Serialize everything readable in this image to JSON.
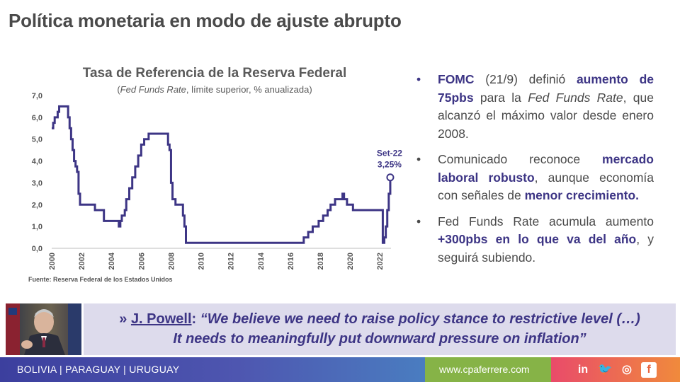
{
  "slide": {
    "title": "Política monetaria en modo de ajuste abrupto"
  },
  "chart_data": {
    "type": "line",
    "title": "Tasa de Referencia de la Reserva Federal",
    "subtitle_italic": "Fed Funds Rate",
    "subtitle_rest": ", límite superior, % anualizada)",
    "subtitle_open": "(",
    "source": "Fuente: Reserva Federal de los Estados Unidos",
    "ylim": [
      0,
      7
    ],
    "yticks": [
      "0,0",
      "1,0",
      "2,0",
      "3,0",
      "4,0",
      "5,0",
      "6,0",
      "7,0"
    ],
    "xlim": [
      2000,
      2022.75
    ],
    "xticks": [
      "2000",
      "2002",
      "2004",
      "2006",
      "2008",
      "2010",
      "2012",
      "2014",
      "2016",
      "2018",
      "2020",
      "2022"
    ],
    "grid": false,
    "line_color": "#3d3585",
    "annotation": {
      "label": "Set-22",
      "value": "3,25%",
      "x": 2022.7,
      "y": 3.25
    },
    "series": [
      {
        "x": [
          2000.0,
          2000.1,
          2000.2,
          2000.4,
          2000.5,
          2001.0,
          2001.1,
          2001.2,
          2001.3,
          2001.4,
          2001.5,
          2001.6,
          2001.7,
          2001.8,
          2001.9,
          2002.9,
          2003.5,
          2004.5,
          2004.6,
          2004.7,
          2004.9,
          2005.0,
          2005.2,
          2005.4,
          2005.6,
          2005.8,
          2006.0,
          2006.2,
          2006.5,
          2007.7,
          2007.8,
          2007.9,
          2008.0,
          2008.1,
          2008.3,
          2008.8,
          2008.9,
          2009.0,
          2015.9,
          2016.9,
          2017.2,
          2017.5,
          2017.9,
          2018.2,
          2018.5,
          2018.7,
          2019.0,
          2019.5,
          2019.6,
          2019.8,
          2020.2,
          2022.2,
          2022.3,
          2022.4,
          2022.5,
          2022.6,
          2022.7
        ],
        "y": [
          5.5,
          5.75,
          6.0,
          6.25,
          6.5,
          6.5,
          6.0,
          5.5,
          5.0,
          4.5,
          4.0,
          3.75,
          3.5,
          2.5,
          2.0,
          1.75,
          1.25,
          1.0,
          1.25,
          1.5,
          1.75,
          2.25,
          2.75,
          3.25,
          3.75,
          4.25,
          4.75,
          5.0,
          5.25,
          5.25,
          4.75,
          4.5,
          3.0,
          2.25,
          2.0,
          1.5,
          1.0,
          0.25,
          0.25,
          0.5,
          0.75,
          1.0,
          1.25,
          1.5,
          1.75,
          2.0,
          2.25,
          2.5,
          2.25,
          2.0,
          1.75,
          0.25,
          0.5,
          1.0,
          1.75,
          2.5,
          3.25
        ]
      }
    ]
  },
  "bullets": [
    {
      "parts": [
        {
          "t": "FOMC",
          "s": "hl"
        },
        {
          "t": " (21/9) definió ",
          "s": ""
        },
        {
          "t": "aumento de 75pbs",
          "s": "hl"
        },
        {
          "t": " para la ",
          "s": ""
        },
        {
          "t": "Fed Funds Rate",
          "s": "it"
        },
        {
          "t": ", que alcanzó el máximo valor desde enero 2008.",
          "s": ""
        }
      ]
    },
    {
      "parts": [
        {
          "t": "Comunicado reconoce ",
          "s": ""
        },
        {
          "t": "mercado laboral robusto",
          "s": "hl"
        },
        {
          "t": ", aunque economía con señales de ",
          "s": ""
        },
        {
          "t": "menor crecimiento.",
          "s": "hl"
        }
      ]
    },
    {
      "parts": [
        {
          "t": "Fed Funds Rate acumula aumento ",
          "s": ""
        },
        {
          "t": "+300pbs en lo que va del año",
          "s": "hl"
        },
        {
          "t": ", y seguirá subiendo.",
          "s": ""
        }
      ]
    }
  ],
  "quote": {
    "prefix": "» ",
    "speaker": "J. Powell",
    "colon": ": ",
    "line1": "“We believe we need to raise policy stance to restrictive level (…)",
    "line2": "It needs to meaningfully put downward pressure on inflation”"
  },
  "footer": {
    "countries": "BOLIVIA | PARAGUAY | URUGUAY",
    "website": "www.cpaferrere.com",
    "social_icons": [
      "linkedin-icon",
      "twitter-icon",
      "instagram-icon",
      "facebook-icon"
    ],
    "social_glyphs": [
      "in",
      "🐦",
      "◎",
      "f"
    ]
  },
  "colors": {
    "accent": "#3d3585",
    "text": "#4a4a4a",
    "quote_bg": "#dddbec",
    "footer_blue": "#4e56b0",
    "footer_green": "#86b347",
    "footer_red": "#e94b6a"
  }
}
